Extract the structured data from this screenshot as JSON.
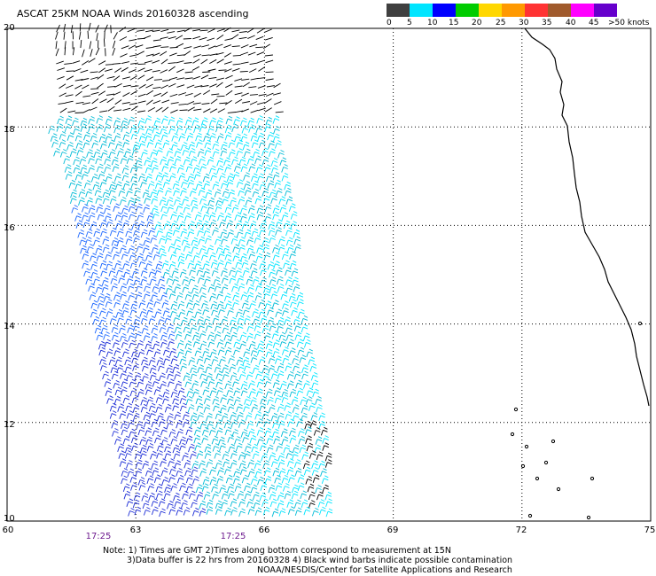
{
  "title": "ASCAT 25KM NOAA Winds 20160328 ascending",
  "legend": {
    "labels": [
      "0",
      "5",
      "10",
      "15",
      "20",
      "25",
      "30",
      "35",
      "40",
      "45",
      ">50 knots"
    ],
    "colors": [
      "#3f3f3f",
      "#7f7f7f",
      "#00e5ff",
      "#0099ff",
      "#0000ff",
      "#00cc00",
      "#ffd700",
      "#ff9900",
      "#ff3333",
      "#cc0000",
      "#a05a2c",
      "#ff00ff",
      "#cc00cc",
      "#6600cc",
      "#3a0066"
    ]
  },
  "axes": {
    "lat_labels": [
      "20",
      "18",
      "16",
      "14",
      "12",
      "10"
    ],
    "lon_labels": [
      "60",
      "63",
      "66",
      "69",
      "72",
      "75"
    ],
    "lat_range": [
      10,
      20
    ],
    "lon_range": [
      60,
      75
    ],
    "grid": "dotted"
  },
  "times": [
    {
      "label": "17:25",
      "lon": 62.0
    },
    {
      "label": "17:25",
      "lon": 65.3
    }
  ],
  "notes": [
    "Note: 1) Times are GMT 2)Times along bottom correspond to measurement at 15N",
    "3)Data buffer is 22 hrs from 20160328 4) Black wind barbs indicate possible contamination",
    "NOAA/NESDIS/Center for Satellite Applications and Research"
  ],
  "colors": {
    "contaminated_barb": "#000000",
    "light_cyan_barb": "#00e5ff",
    "cyan_barb": "#00bbd6",
    "blue_barb": "#1a66ff",
    "dark_blue_barb": "#1a2bd6",
    "coastline": "#000000",
    "grid": "#000000"
  }
}
